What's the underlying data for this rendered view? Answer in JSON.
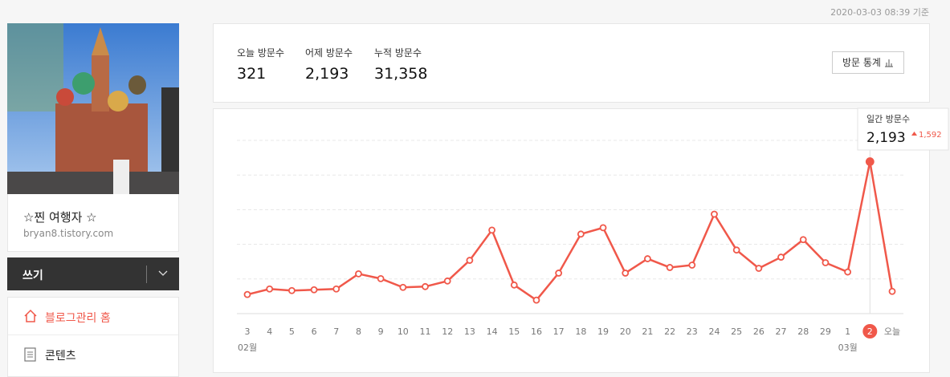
{
  "timestamp": "2020-03-03 08:39 기준",
  "profile": {
    "name": "☆찐 여행자 ☆",
    "url": "bryan8.tistory.com"
  },
  "write_button": "쓰기",
  "menu": [
    "블로그관리 홈",
    "콘텐츠"
  ],
  "stats": [
    {
      "label": "오늘 방문수",
      "value": "321"
    },
    {
      "label": "어제 방문수",
      "value": "2,193"
    },
    {
      "label": "누적 방문수",
      "value": "31,358"
    }
  ],
  "stats_button": "방문 통계",
  "chart_data": {
    "type": "line",
    "categories": [
      "3",
      "4",
      "5",
      "6",
      "7",
      "8",
      "9",
      "10",
      "11",
      "12",
      "13",
      "14",
      "15",
      "16",
      "17",
      "18",
      "19",
      "20",
      "21",
      "22",
      "23",
      "24",
      "25",
      "26",
      "27",
      "28",
      "29",
      "1",
      "2",
      "오늘"
    ],
    "values": [
      276,
      356,
      333,
      344,
      356,
      574,
      505,
      379,
      390,
      471,
      769,
      1205,
      413,
      195,
      585,
      1148,
      1240,
      585,
      792,
      666,
      700,
      1435,
      918,
      654,
      815,
      1068,
      735,
      601,
      2193,
      321
    ],
    "month_labels": [
      {
        "label": "02월",
        "index": 0
      },
      {
        "label": "03월",
        "index": 27
      }
    ],
    "highlight_index": 28,
    "tooltip": {
      "title": "일간 방문수",
      "value": "2,193",
      "change": "1,592"
    },
    "color": "#f0584a",
    "ylim": [
      0,
      2500
    ],
    "yticks": [
      0,
      500,
      1000,
      1500,
      2000,
      2500
    ],
    "grid": true
  }
}
